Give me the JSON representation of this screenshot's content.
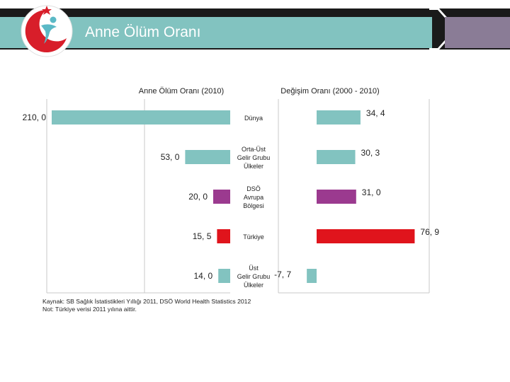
{
  "header": {
    "title": "Anne Ölüm Oranı"
  },
  "colors": {
    "teal": "#82c3c0",
    "purple": "#9b3a8f",
    "red": "#e0141c",
    "axis": "#c8c8c8"
  },
  "chart_data": {
    "type": "bar",
    "orientation": "horizontal",
    "categories": [
      [
        "Dünya"
      ],
      [
        "Orta-Üst",
        "Gelir Grubu",
        "Ülkeler"
      ],
      [
        "DSÖ",
        "Avrupa",
        "Bölgesi"
      ],
      [
        "Türkiye"
      ],
      [
        "Üst",
        "Gelir Grubu",
        "Ülkeler"
      ]
    ],
    "series": [
      {
        "name": "Anne Ölüm Oranı (2010)",
        "values": [
          210.0,
          53.0,
          20.0,
          15.5,
          14.0
        ],
        "labels": [
          "210, 0",
          "53, 0",
          "20, 0",
          "15, 5",
          "14, 0"
        ],
        "direction": "left"
      },
      {
        "name": "Değişim Oranı (2000 - 2010)",
        "values": [
          34.4,
          30.3,
          31.0,
          76.9,
          -7.7
        ],
        "labels": [
          "34, 4",
          "30, 3",
          "31, 0",
          "76, 9",
          "-7, 7"
        ],
        "direction": "right"
      }
    ],
    "bar_colors": [
      "teal",
      "teal",
      "purple",
      "red",
      "teal"
    ]
  },
  "footer": {
    "source": "Kaynak: SB Sağlık İstatistikleri Yıllığı 2011, DSÖ World Health Statistics 2012",
    "note": "Not: Türkiye verisi 2011 yılına aittir."
  }
}
